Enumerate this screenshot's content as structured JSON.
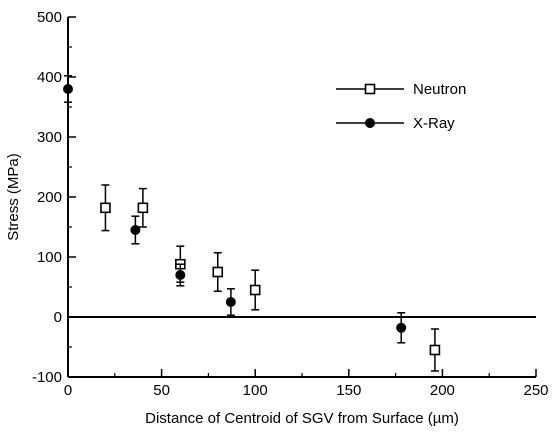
{
  "chart_data": {
    "type": "scatter",
    "title": "",
    "xlabel": "Distance of Centroid of SGV from Surface (µm)",
    "ylabel": "Stress (MPa)",
    "xlim": [
      0,
      250
    ],
    "ylim": [
      -100,
      500
    ],
    "xticks": [
      0,
      50,
      100,
      150,
      200,
      250
    ],
    "yticks": [
      -100,
      0,
      100,
      200,
      300,
      400,
      500
    ],
    "grid": false,
    "legend_position": "top-right",
    "reference_line_y": 0,
    "series": [
      {
        "name": "Neutron",
        "marker": "open-square",
        "points": [
          {
            "x": 20,
            "y": 182,
            "yerr": 38
          },
          {
            "x": 40,
            "y": 182,
            "yerr": 32
          },
          {
            "x": 60,
            "y": 88,
            "yerr": 30
          },
          {
            "x": 80,
            "y": 75,
            "yerr": 32
          },
          {
            "x": 100,
            "y": 45,
            "yerr": 33
          },
          {
            "x": 196,
            "y": -55,
            "yerr": 35
          }
        ]
      },
      {
        "name": "X-Ray",
        "marker": "filled-circle",
        "points": [
          {
            "x": 0,
            "y": 380,
            "yerr": 22
          },
          {
            "x": 36,
            "y": 145,
            "yerr": 23
          },
          {
            "x": 60,
            "y": 70,
            "yerr": 18
          },
          {
            "x": 87,
            "y": 25,
            "yerr": 22
          },
          {
            "x": 178,
            "y": -18,
            "yerr": 25
          }
        ]
      }
    ]
  }
}
